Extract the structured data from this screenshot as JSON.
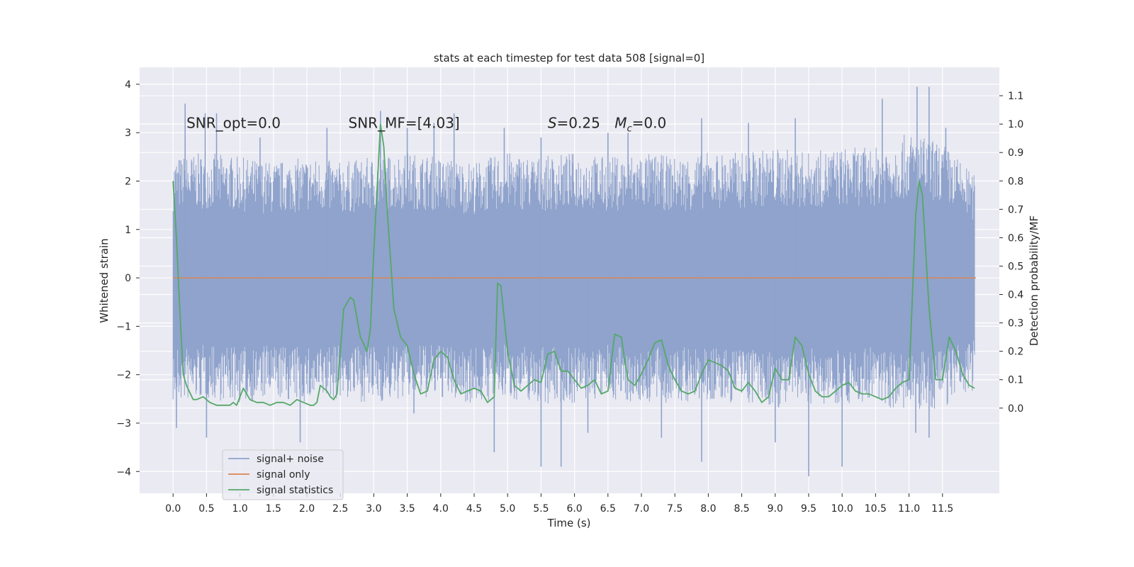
{
  "chart_data": {
    "type": "line",
    "title": "stats at each timestep for test data 508 [signal=0]",
    "xlabel": "Time (s)",
    "ylabel_left": "Whitened strain",
    "ylabel_right": "Detection probability/MF",
    "xlim": [
      -0.5,
      12.35
    ],
    "ylim_left": [
      -4.45,
      4.35
    ],
    "ylim_right": [
      -0.3,
      1.2
    ],
    "xticks": [
      0.0,
      0.5,
      1.0,
      1.5,
      2.0,
      2.5,
      3.0,
      3.5,
      4.0,
      4.5,
      5.0,
      5.5,
      6.0,
      6.5,
      7.0,
      7.5,
      8.0,
      8.5,
      9.0,
      9.5,
      10.0,
      10.5,
      11.0,
      11.5
    ],
    "xtick_labels": [
      "0.0",
      "0.5",
      "1.0",
      "1.5",
      "2.0",
      "2.5",
      "3.0",
      "3.5",
      "4.0",
      "4.5",
      "5.0",
      "5.5",
      "6.0",
      "6.5",
      "7.0",
      "7.5",
      "8.0",
      "8.5",
      "9.0",
      "9.5",
      "10.0",
      "10.5",
      "11.0",
      "11.5"
    ],
    "yticks_left": [
      4,
      3,
      2,
      1,
      0,
      -1,
      -2,
      -3,
      -4
    ],
    "yticks_left_labels": [
      "4",
      "3",
      "2",
      "1",
      "0",
      "−1",
      "−2",
      "−3",
      "−4"
    ],
    "yticks_right": [
      1.1,
      1.0,
      0.9,
      0.8,
      0.7,
      0.6,
      0.5,
      0.4,
      0.3,
      0.2,
      0.1,
      0.0
    ],
    "yticks_right_labels": [
      "1.1",
      "1.0",
      "0.9",
      "0.8",
      "0.7",
      "0.6",
      "0.5",
      "0.4",
      "0.3",
      "0.2",
      "0.1",
      "0.0"
    ],
    "grid": true,
    "legend_position": "lower-left",
    "annotations": [
      {
        "id": "snr-opt",
        "text": "SNR_opt=0.0",
        "x": 0.2,
        "y": 3.1
      },
      {
        "id": "snr-mf",
        "text": "SNR_MF=[4.03]",
        "x": 2.62,
        "y": 3.1
      },
      {
        "id": "s-value",
        "text": "S=0.25",
        "x": 5.6,
        "y": 3.1
      },
      {
        "id": "mc-value",
        "text": "M_c=0.0",
        "x": 6.6,
        "y": 3.1
      }
    ],
    "noise_envelope": {
      "description_free": true,
      "t": [
        0.0,
        0.5,
        1.0,
        1.5,
        2.0,
        2.5,
        3.0,
        3.5,
        4.0,
        4.5,
        5.0,
        5.5,
        6.0,
        6.5,
        7.0,
        7.5,
        8.0,
        8.5,
        9.0,
        9.5,
        10.0,
        10.5,
        11.0,
        11.5,
        12.0
      ],
      "upper": [
        2.5,
        2.6,
        2.5,
        2.4,
        2.5,
        2.4,
        2.5,
        2.6,
        2.5,
        2.4,
        2.6,
        2.5,
        2.6,
        2.5,
        2.6,
        2.5,
        2.6,
        2.6,
        2.7,
        2.6,
        2.7,
        2.7,
        3.0,
        2.8,
        2.1
      ],
      "lower": [
        -2.6,
        -2.5,
        -2.6,
        -2.5,
        -2.6,
        -2.5,
        -2.6,
        -2.5,
        -2.5,
        -2.6,
        -2.5,
        -2.6,
        -2.6,
        -2.5,
        -2.6,
        -2.6,
        -2.6,
        -2.6,
        -2.7,
        -2.6,
        -2.6,
        -2.6,
        -2.8,
        -2.7,
        -2.3
      ],
      "spikes": [
        [
          0.18,
          3.6
        ],
        [
          0.48,
          3.4
        ],
        [
          0.65,
          3.4
        ],
        [
          1.3,
          2.9
        ],
        [
          2.3,
          3.1
        ],
        [
          3.1,
          3.45
        ],
        [
          3.5,
          3.1
        ],
        [
          3.9,
          3.2
        ],
        [
          4.2,
          3.4
        ],
        [
          4.95,
          3.1
        ],
        [
          5.5,
          2.9
        ],
        [
          6.5,
          3.0
        ],
        [
          6.8,
          3.0
        ],
        [
          7.9,
          3.3
        ],
        [
          8.6,
          3.2
        ],
        [
          9.3,
          3.3
        ],
        [
          10.6,
          3.7
        ],
        [
          11.12,
          3.95
        ],
        [
          11.3,
          3.95
        ],
        [
          11.55,
          3.1
        ],
        [
          0.05,
          -3.1
        ],
        [
          0.5,
          -3.3
        ],
        [
          1.9,
          -3.4
        ],
        [
          4.8,
          -3.6
        ],
        [
          5.5,
          -3.9
        ],
        [
          5.8,
          -3.9
        ],
        [
          7.3,
          -3.3
        ],
        [
          7.9,
          -3.8
        ],
        [
          9.0,
          -3.4
        ],
        [
          9.5,
          -4.1
        ],
        [
          10.0,
          -3.9
        ],
        [
          11.1,
          -3.2
        ],
        [
          11.3,
          -3.3
        ],
        [
          3.6,
          -2.8
        ],
        [
          6.2,
          -3.2
        ]
      ]
    },
    "series": [
      {
        "name": "signal+ noise",
        "color": "#8fa3cc"
      },
      {
        "name": "signal only",
        "color": "#dd8452",
        "x": [
          0.0,
          12.0
        ],
        "y": [
          0.0,
          0.0
        ]
      },
      {
        "name": "signal statistics",
        "color": "#55a868",
        "x": [
          0.0,
          0.05,
          0.1,
          0.15,
          0.2,
          0.3,
          0.35,
          0.45,
          0.55,
          0.65,
          0.8,
          0.85,
          0.9,
          0.95,
          1.05,
          1.15,
          1.25,
          1.35,
          1.45,
          1.55,
          1.65,
          1.75,
          1.85,
          1.95,
          2.05,
          2.1,
          2.15,
          2.2,
          2.3,
          2.35,
          2.4,
          2.45,
          2.55,
          2.65,
          2.7,
          2.8,
          2.9,
          2.95,
          3.0,
          3.1,
          3.15,
          3.2,
          3.3,
          3.4,
          3.5,
          3.6,
          3.7,
          3.8,
          3.9,
          4.0,
          4.1,
          4.2,
          4.3,
          4.4,
          4.5,
          4.6,
          4.7,
          4.8,
          4.85,
          4.9,
          5.0,
          5.1,
          5.2,
          5.3,
          5.4,
          5.5,
          5.6,
          5.7,
          5.8,
          5.9,
          6.0,
          6.1,
          6.2,
          6.3,
          6.4,
          6.5,
          6.6,
          6.7,
          6.75,
          6.8,
          6.9,
          7.0,
          7.1,
          7.2,
          7.3,
          7.4,
          7.5,
          7.6,
          7.7,
          7.8,
          7.9,
          8.0,
          8.1,
          8.2,
          8.3,
          8.4,
          8.5,
          8.6,
          8.7,
          8.8,
          8.9,
          9.0,
          9.1,
          9.2,
          9.3,
          9.4,
          9.5,
          9.6,
          9.7,
          9.8,
          9.9,
          10.0,
          10.1,
          10.2,
          10.3,
          10.4,
          10.5,
          10.6,
          10.7,
          10.8,
          10.9,
          11.0,
          11.1,
          11.15,
          11.2,
          11.3,
          11.4,
          11.5,
          11.6,
          11.7,
          11.8,
          11.9,
          11.98
        ],
        "y": [
          0.8,
          0.6,
          0.35,
          0.12,
          0.08,
          0.03,
          0.03,
          0.04,
          0.02,
          0.01,
          0.01,
          0.01,
          0.02,
          0.01,
          0.07,
          0.03,
          0.02,
          0.02,
          0.01,
          0.02,
          0.02,
          0.01,
          0.03,
          0.02,
          0.01,
          0.01,
          0.02,
          0.08,
          0.06,
          0.04,
          0.03,
          0.05,
          0.35,
          0.39,
          0.38,
          0.25,
          0.2,
          0.28,
          0.55,
          1.0,
          0.92,
          0.7,
          0.35,
          0.25,
          0.22,
          0.12,
          0.05,
          0.06,
          0.17,
          0.2,
          0.18,
          0.1,
          0.05,
          0.06,
          0.07,
          0.06,
          0.02,
          0.04,
          0.44,
          0.43,
          0.2,
          0.08,
          0.06,
          0.08,
          0.1,
          0.09,
          0.19,
          0.2,
          0.13,
          0.13,
          0.1,
          0.07,
          0.08,
          0.1,
          0.05,
          0.06,
          0.26,
          0.25,
          0.17,
          0.1,
          0.08,
          0.12,
          0.17,
          0.23,
          0.24,
          0.15,
          0.1,
          0.06,
          0.05,
          0.06,
          0.12,
          0.17,
          0.16,
          0.15,
          0.13,
          0.07,
          0.06,
          0.09,
          0.06,
          0.02,
          0.04,
          0.14,
          0.1,
          0.1,
          0.25,
          0.22,
          0.12,
          0.06,
          0.04,
          0.04,
          0.06,
          0.08,
          0.09,
          0.06,
          0.05,
          0.05,
          0.04,
          0.03,
          0.04,
          0.07,
          0.09,
          0.1,
          0.68,
          0.8,
          0.75,
          0.35,
          0.1,
          0.1,
          0.25,
          0.2,
          0.12,
          0.08,
          0.07
        ]
      }
    ]
  }
}
